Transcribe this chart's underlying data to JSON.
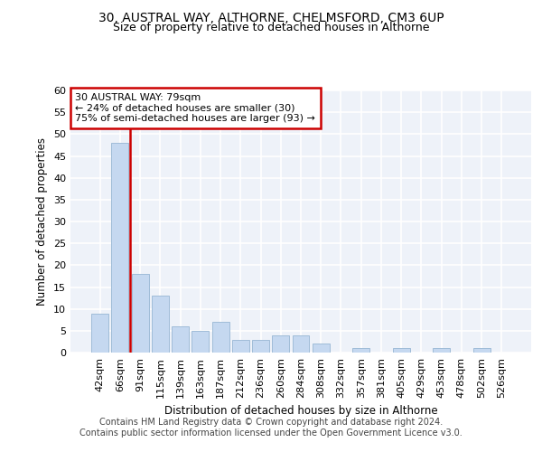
{
  "title1": "30, AUSTRAL WAY, ALTHORNE, CHELMSFORD, CM3 6UP",
  "title2": "Size of property relative to detached houses in Althorne",
  "xlabel": "Distribution of detached houses by size in Althorne",
  "ylabel": "Number of detached properties",
  "bar_labels": [
    "42sqm",
    "66sqm",
    "91sqm",
    "115sqm",
    "139sqm",
    "163sqm",
    "187sqm",
    "212sqm",
    "236sqm",
    "260sqm",
    "284sqm",
    "308sqm",
    "332sqm",
    "357sqm",
    "381sqm",
    "405sqm",
    "429sqm",
    "453sqm",
    "478sqm",
    "502sqm",
    "526sqm"
  ],
  "bar_values": [
    9,
    48,
    18,
    13,
    6,
    5,
    7,
    3,
    3,
    4,
    4,
    2,
    0,
    1,
    0,
    1,
    0,
    1,
    0,
    1,
    0
  ],
  "bar_color": "#c5d8f0",
  "bar_edge_color": "#a0bcd8",
  "vline_color": "#cc0000",
  "annotation_text": "30 AUSTRAL WAY: 79sqm\n← 24% of detached houses are smaller (30)\n75% of semi-detached houses are larger (93) →",
  "annotation_box_color": "#cc0000",
  "ylim": [
    0,
    60
  ],
  "yticks": [
    0,
    5,
    10,
    15,
    20,
    25,
    30,
    35,
    40,
    45,
    50,
    55,
    60
  ],
  "bg_color": "#eef2f9",
  "footer1": "Contains HM Land Registry data © Crown copyright and database right 2024.",
  "footer2": "Contains public sector information licensed under the Open Government Licence v3.0."
}
